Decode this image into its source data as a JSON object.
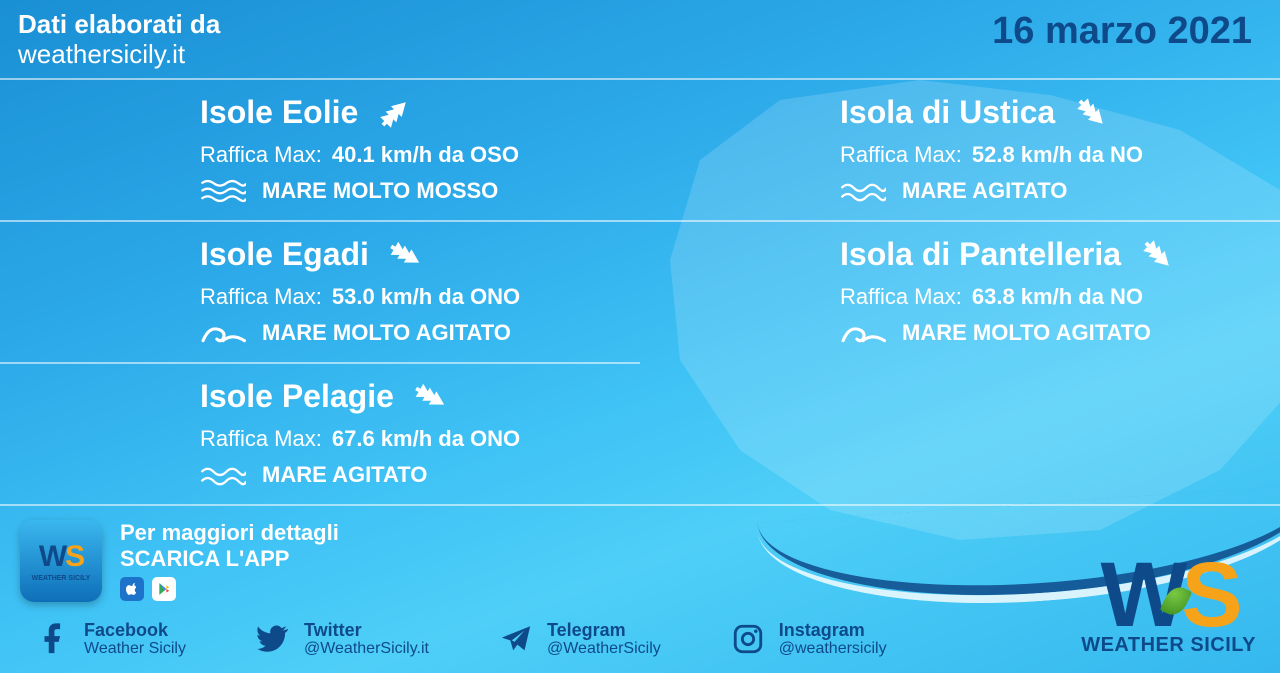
{
  "header": {
    "credit_line1": "Dati elaborati da",
    "credit_line2": "weathersicily.it",
    "date": "16 marzo 2021"
  },
  "colors": {
    "bg_gradient_from": "#1a8fd4",
    "bg_gradient_to": "#4ecff8",
    "accent_dark": "#0e4a8a",
    "accent_orange": "#f7a31a",
    "text": "#ffffff",
    "divider": "rgba(255,255,255,0.55)"
  },
  "labels": {
    "gust": "Raffica Max:"
  },
  "cards": [
    {
      "name": "Isole Eolie",
      "gust_value": "40.1 km/h da OSO",
      "sea_state": "MARE MOLTO MOSSO",
      "sea_icon": "waves-triple",
      "arrow_rotation": 45
    },
    {
      "name": "Isola di Ustica",
      "gust_value": "52.8 km/h da NO",
      "sea_state": "MARE AGITATO",
      "sea_icon": "waves-double",
      "arrow_rotation": 135
    },
    {
      "name": "Isole Egadi",
      "gust_value": "53.0 km/h da ONO",
      "sea_state": "MARE MOLTO AGITATO",
      "sea_icon": "wave-curl",
      "arrow_rotation": 120
    },
    {
      "name": "Isola di Pantelleria",
      "gust_value": "63.8 km/h da NO",
      "sea_state": "MARE MOLTO AGITATO",
      "sea_icon": "wave-curl",
      "arrow_rotation": 135
    },
    {
      "name": "Isole Pelagie",
      "gust_value": "67.6 km/h da ONO",
      "sea_state": "MARE AGITATO",
      "sea_icon": "waves-double",
      "arrow_rotation": 120
    }
  ],
  "promo": {
    "line1": "Per maggiori dettagli",
    "line2": "SCARICA L'APP",
    "app_name": "WS",
    "app_sub": "WEATHER SICILY"
  },
  "socials": [
    {
      "icon": "facebook",
      "name": "Facebook",
      "handle": "Weather Sicily"
    },
    {
      "icon": "twitter",
      "name": "Twitter",
      "handle": "@WeatherSicily.it"
    },
    {
      "icon": "telegram",
      "name": "Telegram",
      "handle": "@WeatherSicily"
    },
    {
      "icon": "instagram",
      "name": "Instagram",
      "handle": "@weathersicily"
    }
  ],
  "brand": {
    "name": "WS",
    "subtitle": "WEATHER SICILY"
  }
}
